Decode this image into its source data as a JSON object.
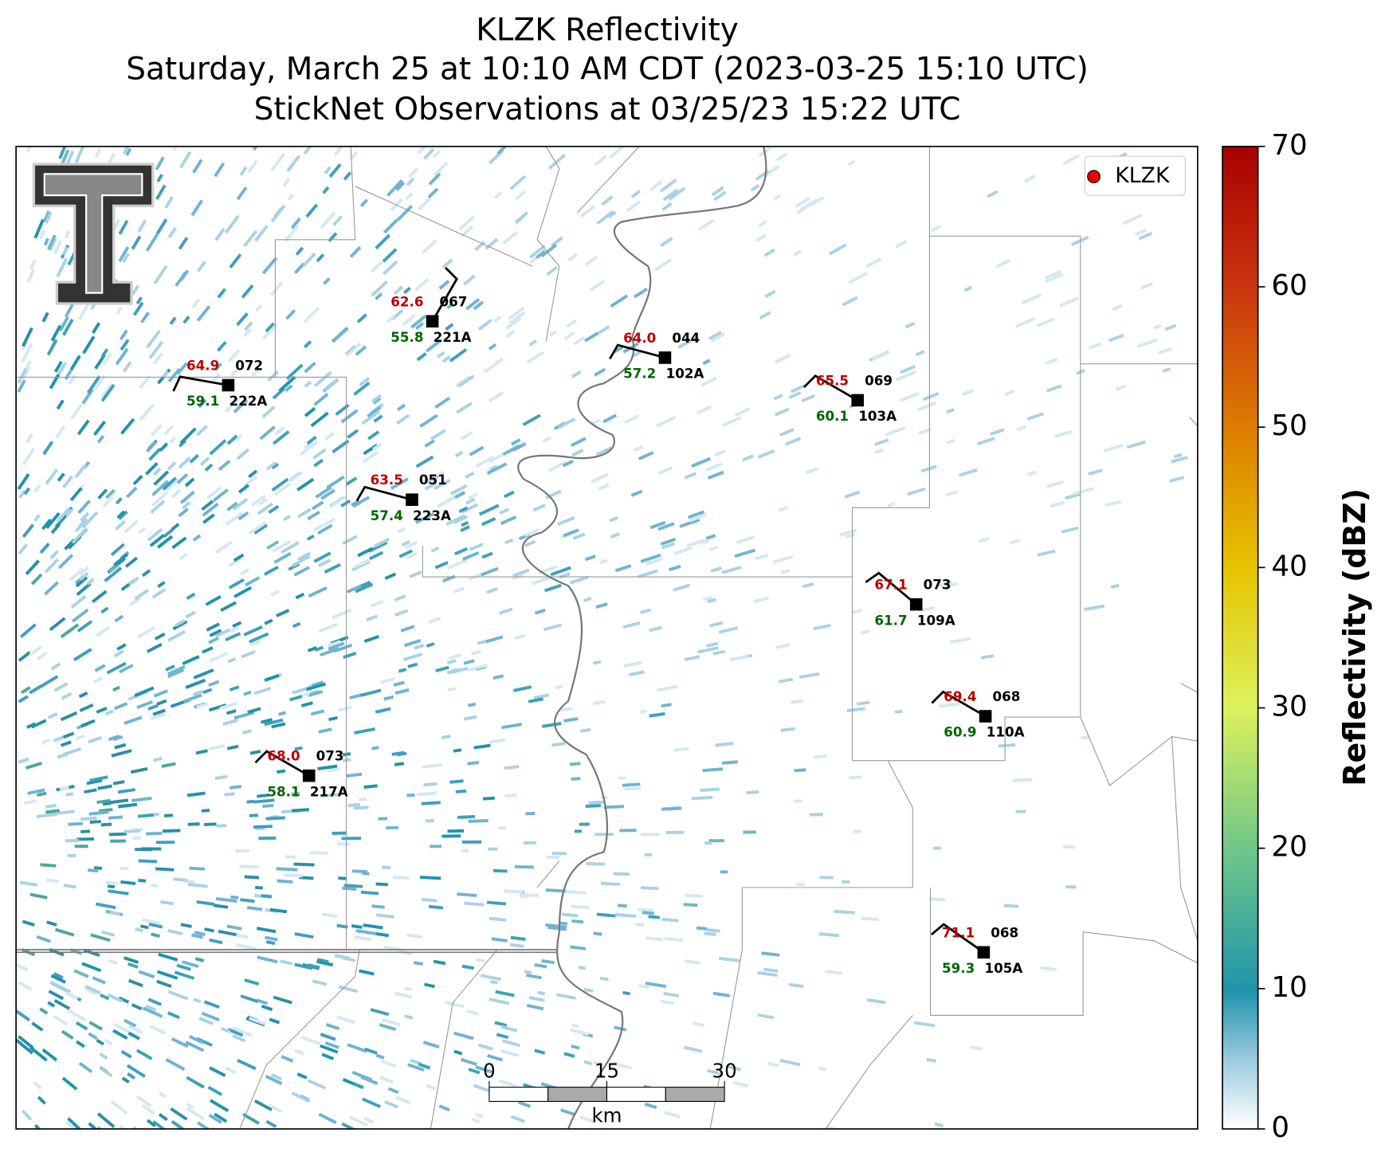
{
  "header": {
    "title": "KLZK Reflectivity",
    "subtitle": "Saturday, March 25 at 10:10 AM CDT (2023-03-25 15:10 UTC)",
    "subtitle2": "StickNet Observations at 03/25/23 15:22 UTC"
  },
  "legend": {
    "label": "KLZK",
    "corner": "upper right"
  },
  "colorbar": {
    "label": "Reflectivity (dBZ)",
    "lim": [
      0,
      70
    ],
    "ticks": [
      0,
      10,
      20,
      30,
      40,
      50,
      60,
      70
    ]
  },
  "scale_bar": {
    "lim": [
      0,
      30
    ],
    "ticks": [
      0,
      15,
      30
    ],
    "unit": "km"
  },
  "stations": [
    {
      "id": "221A",
      "temp": "62.6",
      "dewpoint": "55.8",
      "pressure": "067"
    },
    {
      "id": "222A",
      "temp": "64.9",
      "dewpoint": "59.1",
      "pressure": "072"
    },
    {
      "id": "102A",
      "temp": "64.0",
      "dewpoint": "57.2",
      "pressure": "044"
    },
    {
      "id": "103A",
      "temp": "65.5",
      "dewpoint": "60.1",
      "pressure": "069"
    },
    {
      "id": "223A",
      "temp": "63.5",
      "dewpoint": "57.4",
      "pressure": "051"
    },
    {
      "id": "109A",
      "temp": "67.1",
      "dewpoint": "61.7",
      "pressure": "073"
    },
    {
      "id": "110A",
      "temp": "69.4",
      "dewpoint": "60.9",
      "pressure": "068"
    },
    {
      "id": "217A",
      "temp": "68.0",
      "dewpoint": "58.1",
      "pressure": "073"
    },
    {
      "id": "105A",
      "temp": "71.1",
      "dewpoint": "59.3",
      "pressure": "068"
    }
  ]
}
